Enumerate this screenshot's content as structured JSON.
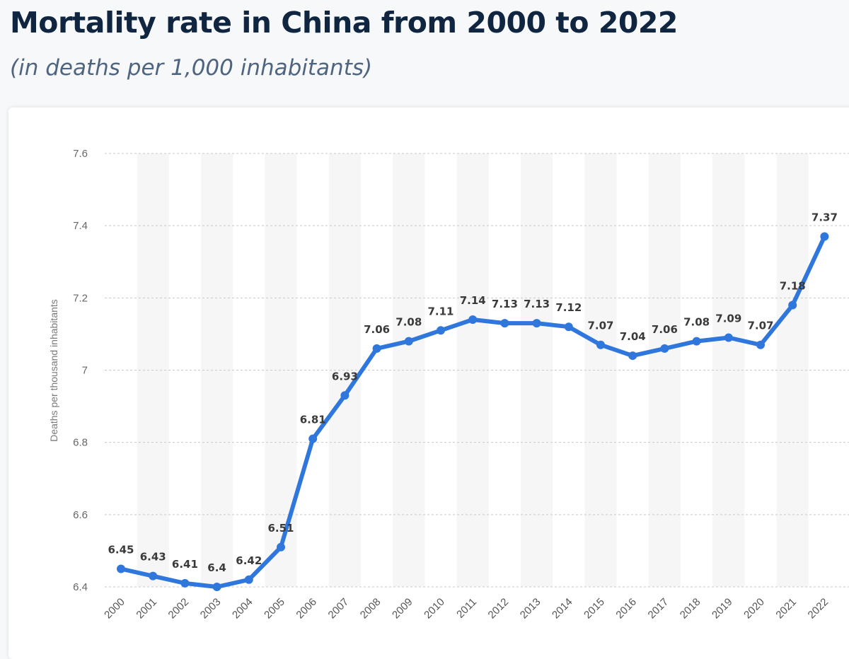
{
  "title": "Mortality rate in China from 2000 to 2022",
  "subtitle": "(in deaths per 1,000 inhabitants)",
  "colors": {
    "line": "#2f77dc",
    "title": "#0f2540",
    "subtitle": "#4f647f"
  },
  "chart_data": {
    "type": "line",
    "categories": [
      "2000",
      "2001",
      "2002",
      "2003",
      "2004",
      "2005",
      "2006",
      "2007",
      "2008",
      "2009",
      "2010",
      "2011",
      "2012",
      "2013",
      "2014",
      "2015",
      "2016",
      "2017",
      "2018",
      "2019",
      "2020",
      "2021",
      "2022"
    ],
    "series": [
      {
        "values": [
          6.45,
          6.43,
          6.41,
          6.4,
          6.42,
          6.51,
          6.81,
          6.93,
          7.06,
          7.08,
          7.11,
          7.14,
          7.13,
          7.13,
          7.12,
          7.07,
          7.04,
          7.06,
          7.08,
          7.09,
          7.07,
          7.18,
          7.37
        ]
      }
    ],
    "ylabel": "Deaths per thousand inhabitants",
    "ylim": [
      6.4,
      7.6
    ],
    "yticks": [
      "6.4",
      "6.6",
      "6.8",
      "7",
      "7.2",
      "7.4",
      "7.6"
    ],
    "grid": true,
    "data_labels": true
  }
}
